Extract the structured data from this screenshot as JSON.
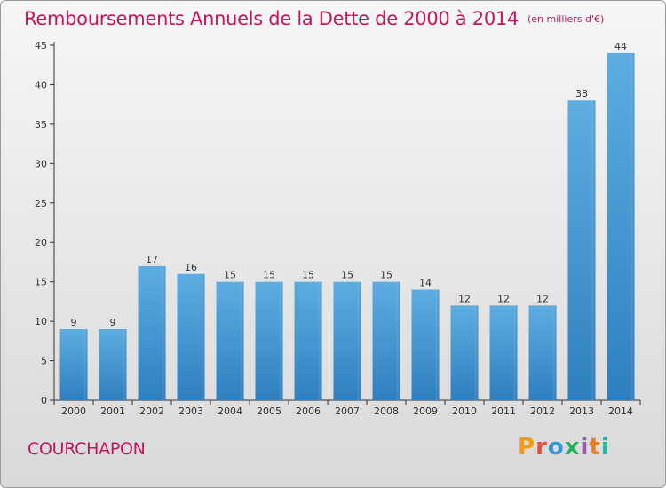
{
  "header": {
    "title": "Remboursements Annuels de la Dette de 2000 à 2014",
    "unit": "(en milliers d'€)"
  },
  "footer": {
    "commune": "COURCHAPON",
    "logo": "Proxiti",
    "logo_colors": [
      "#f39c12",
      "#e74c3c",
      "#3498db",
      "#27ae60",
      "#9b59b6",
      "#e67e22",
      "#1abc9c"
    ]
  },
  "chart_data": {
    "type": "bar",
    "title": "Remboursements Annuels de la Dette de 2000 à 2014",
    "categories": [
      "2000",
      "2001",
      "2002",
      "2003",
      "2004",
      "2005",
      "2006",
      "2007",
      "2008",
      "2009",
      "2010",
      "2011",
      "2012",
      "2013",
      "2014"
    ],
    "values": [
      9,
      9,
      17,
      16,
      15,
      15,
      15,
      15,
      15,
      14,
      12,
      12,
      12,
      38,
      44
    ],
    "value_labels": [
      "9",
      "9",
      "17",
      "16",
      "15",
      "15",
      "15",
      "15",
      "15",
      "14",
      "12",
      "12",
      "12",
      "38",
      "44"
    ],
    "ylim": [
      0,
      45
    ],
    "yticks": [
      0,
      5,
      10,
      15,
      20,
      25,
      30,
      35,
      40,
      45
    ],
    "ytick_labels": [
      "0",
      "5",
      "10",
      "15",
      "20",
      "25",
      "30",
      "35",
      "40",
      "45"
    ],
    "grid": false,
    "bar_color_top": "#5dade2",
    "bar_color_bottom": "#2e7fbf"
  }
}
